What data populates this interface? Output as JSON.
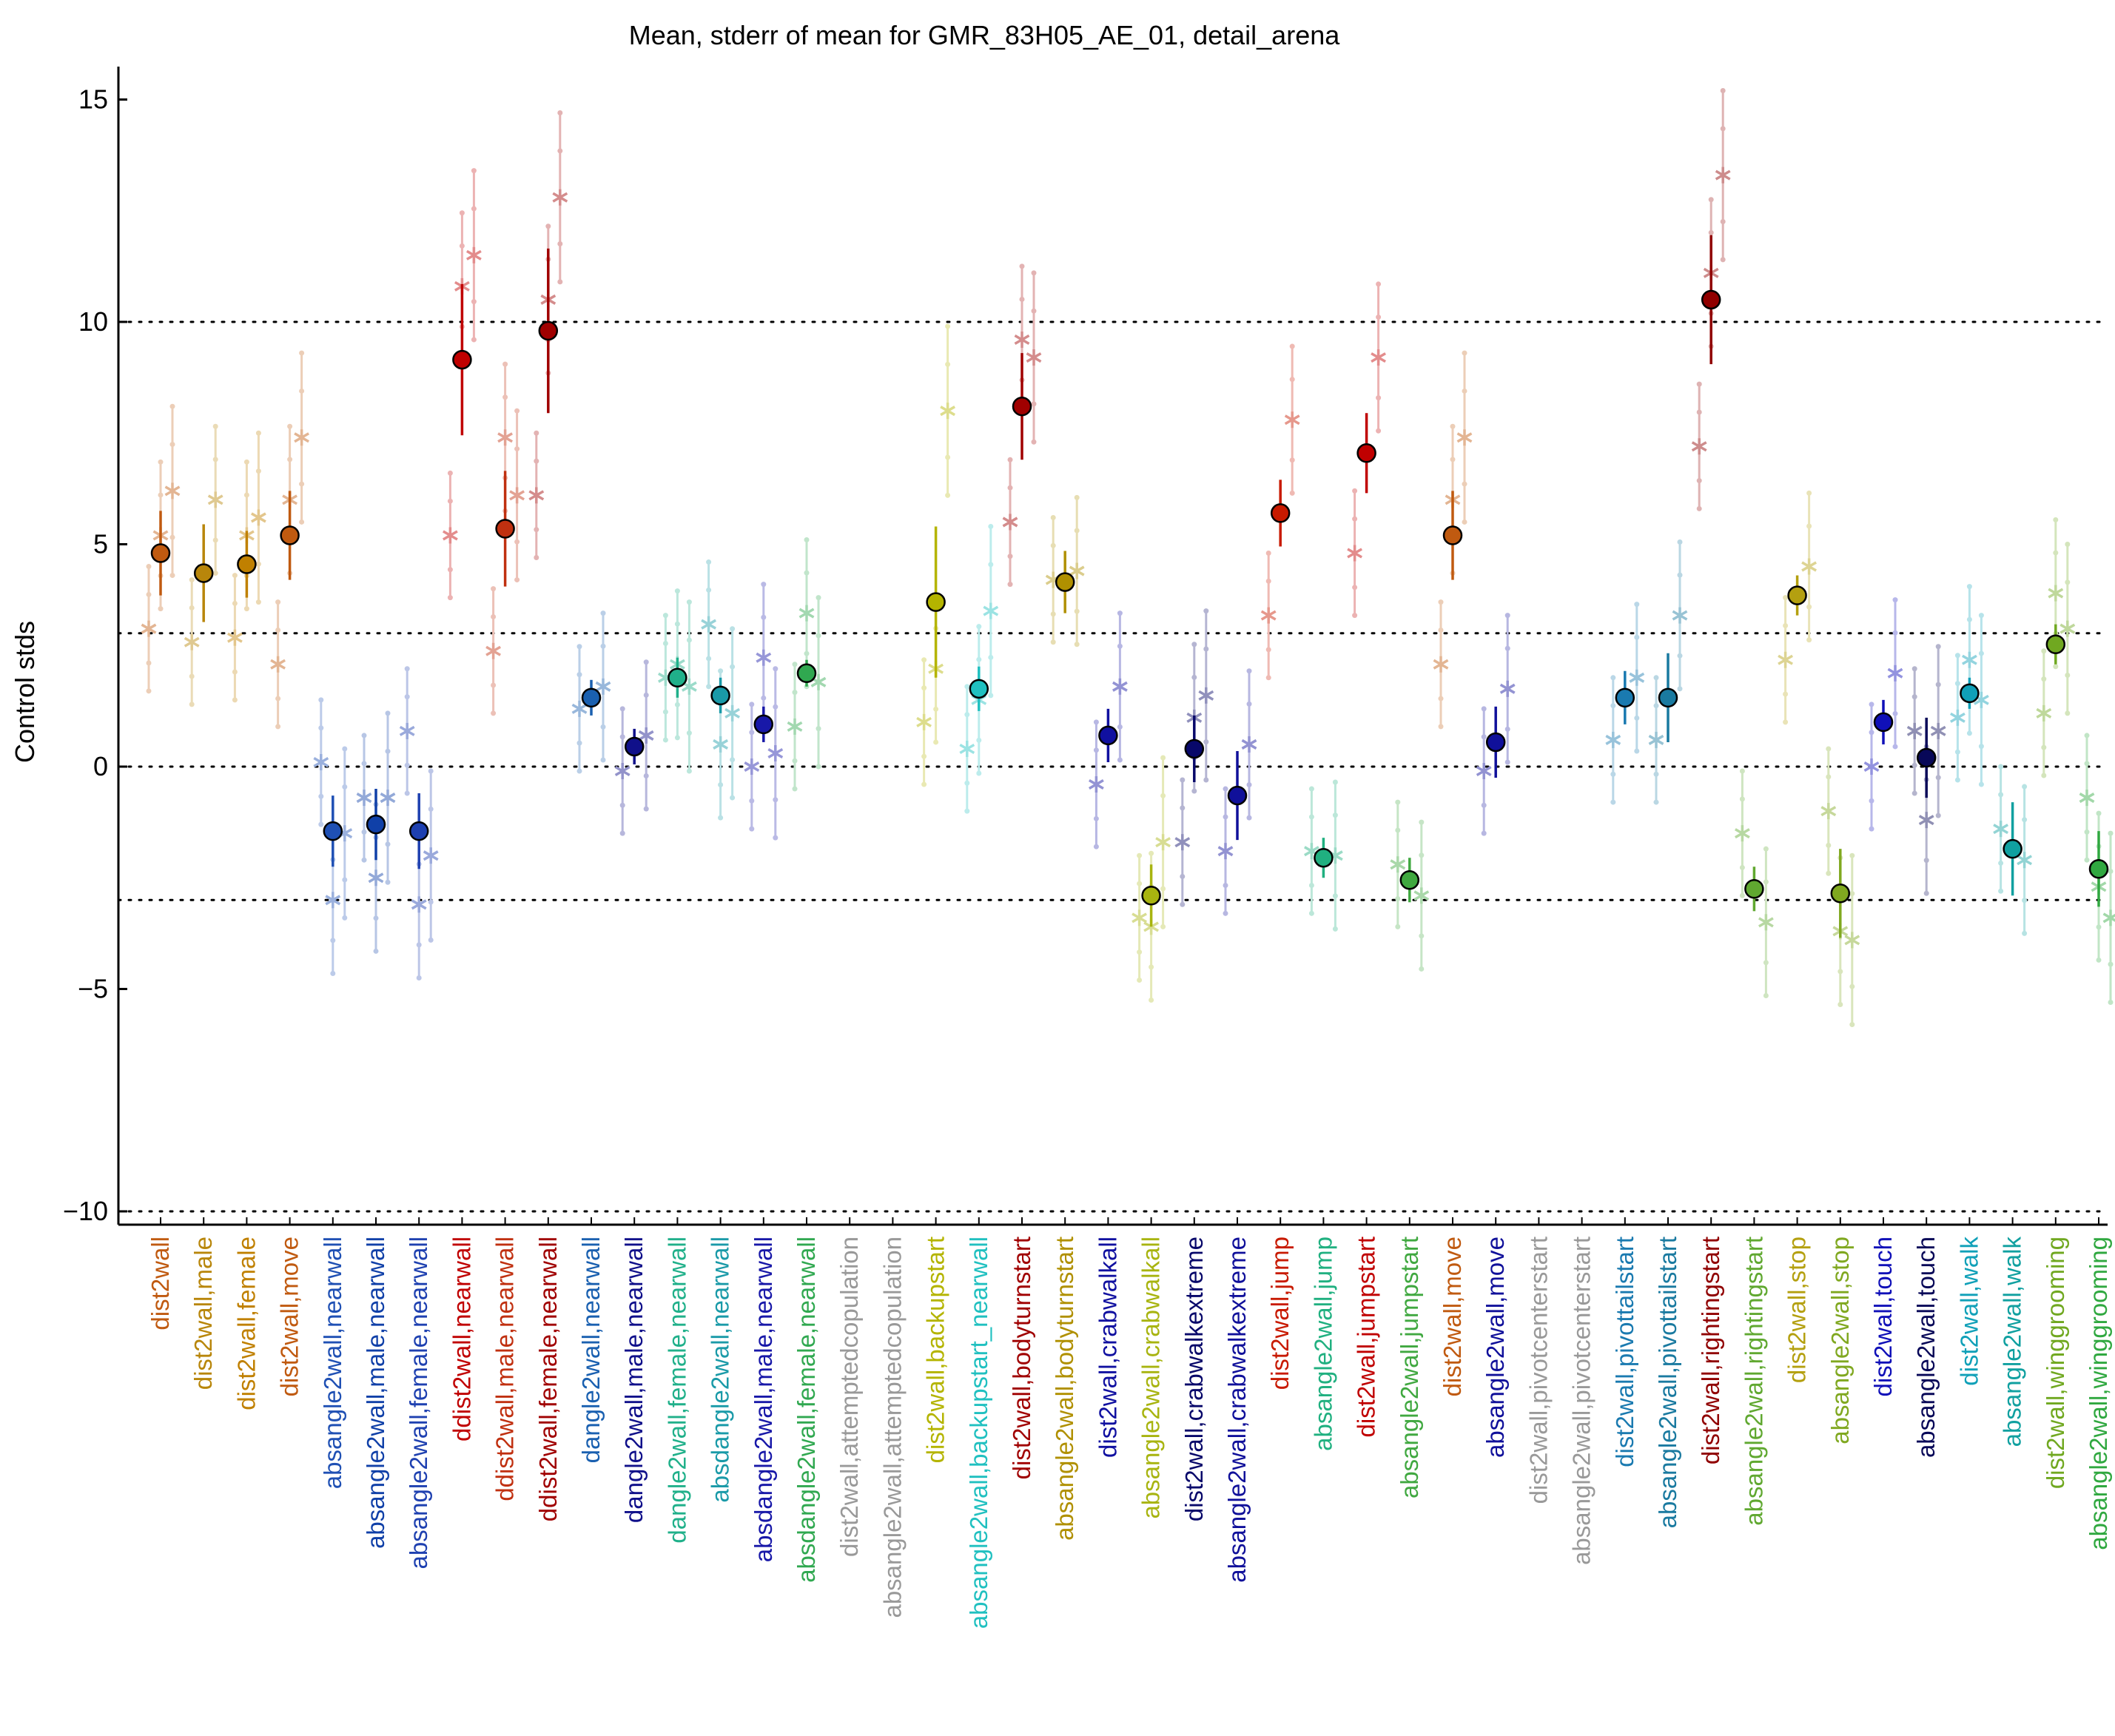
{
  "chart_data": {
    "type": "scatter",
    "title": "Mean, stderr of mean for GMR_83H05_AE_01, detail_arena",
    "xlabel": "",
    "ylabel": "Control stds",
    "ylim": [
      -10,
      15
    ],
    "yticks": [
      {
        "value": 15,
        "label": "15"
      },
      {
        "value": 10,
        "label": "10"
      },
      {
        "value": 5,
        "label": "5"
      },
      {
        "value": 0,
        "label": "0"
      },
      {
        "value": -5,
        "label": "−5"
      },
      {
        "value": -10,
        "label": "−10"
      }
    ],
    "reference_lines": [
      10,
      3,
      0,
      -3,
      -10
    ],
    "grid": false,
    "legend": "none",
    "categories": [
      {
        "label": "dist2wall",
        "color": "#c05a10",
        "mean": 4.8,
        "sem": 0.95,
        "subs": [
          3.1,
          5.2,
          6.2
        ]
      },
      {
        "label": "dist2wall,male",
        "color": "#b8860b",
        "mean": 4.35,
        "sem": 1.1,
        "subs": [
          2.8,
          6.0
        ]
      },
      {
        "label": "dist2wall,female",
        "color": "#c08000",
        "mean": 4.55,
        "sem": 0.75,
        "subs": [
          2.9,
          5.2,
          5.6
        ]
      },
      {
        "label": "dist2wall,move",
        "color": "#c05a10",
        "mean": 5.2,
        "sem": 1.0,
        "subs": [
          2.3,
          6.0,
          7.4
        ]
      },
      {
        "label": "absangle2wall,nearwall",
        "color": "#1f50b4",
        "mean": -1.45,
        "sem": 0.8,
        "subs": [
          0.1,
          -3.0,
          -1.5
        ]
      },
      {
        "label": "absangle2wall,male,nearwall",
        "color": "#1040a8",
        "mean": -1.3,
        "sem": 0.8,
        "subs": [
          -0.7,
          -2.5,
          -0.7
        ]
      },
      {
        "label": "absangle2wall,female,nearwall",
        "color": "#1e40b0",
        "mean": -1.45,
        "sem": 0.85,
        "subs": [
          0.8,
          -3.1,
          -2.0
        ]
      },
      {
        "label": "ddist2wall,nearwall",
        "color": "#c00000",
        "mean": 9.15,
        "sem": 1.7,
        "subs": [
          5.2,
          10.8,
          11.5
        ]
      },
      {
        "label": "ddist2wall,male,nearwall",
        "color": "#c03010",
        "mean": 5.35,
        "sem": 1.3,
        "subs": [
          2.6,
          7.4,
          6.1
        ]
      },
      {
        "label": "ddist2wall,female,nearwall",
        "color": "#a00000",
        "mean": 9.8,
        "sem": 1.85,
        "subs": [
          6.1,
          10.5,
          12.8
        ]
      },
      {
        "label": "dangle2wall,nearwall",
        "color": "#1a60b0",
        "mean": 1.55,
        "sem": 0.4,
        "subs": [
          1.3,
          1.8
        ]
      },
      {
        "label": "dangle2wall,male,nearwall",
        "color": "#10108a",
        "mean": 0.45,
        "sem": 0.4,
        "subs": [
          -0.1,
          0.7
        ]
      },
      {
        "label": "dangle2wall,female,nearwall",
        "color": "#20b08a",
        "mean": 2.0,
        "sem": 0.45,
        "subs": [
          2.0,
          2.3,
          1.8
        ]
      },
      {
        "label": "absdangle2wall,nearwall",
        "color": "#1a9aa8",
        "mean": 1.6,
        "sem": 0.4,
        "subs": [
          3.2,
          0.5,
          1.2
        ]
      },
      {
        "label": "absdangle2wall,male,nearwall",
        "color": "#1818a8",
        "mean": 0.95,
        "sem": 0.4,
        "subs": [
          0.0,
          2.45,
          0.3
        ]
      },
      {
        "label": "absdangle2wall,female,nearwall",
        "color": "#30a850",
        "mean": 2.1,
        "sem": 0.3,
        "subs": [
          0.9,
          3.45,
          1.9
        ]
      },
      {
        "label": "dist2wall,attemptedcopulation",
        "color": "#999999",
        "mean": null,
        "sem": null,
        "subs": []
      },
      {
        "label": "absangle2wall,attemptedcopulation",
        "color": "#999999",
        "mean": null,
        "sem": null,
        "subs": []
      },
      {
        "label": "dist2wall,backupstart",
        "color": "#b4b400",
        "mean": 3.7,
        "sem": 1.7,
        "subs": [
          1.0,
          2.2,
          8.0
        ]
      },
      {
        "label": "absangle2wall,backupstart_nearwall",
        "color": "#20c0c0",
        "mean": 1.75,
        "sem": 0.5,
        "subs": [
          0.4,
          1.5,
          3.5
        ]
      },
      {
        "label": "dist2wall,bodyturnstart",
        "color": "#a00000",
        "mean": 8.1,
        "sem": 1.2,
        "subs": [
          5.5,
          9.6,
          9.2
        ]
      },
      {
        "label": "absangle2wall,bodyturnstart",
        "color": "#b09000",
        "mean": 4.15,
        "sem": 0.7,
        "subs": [
          4.2,
          4.4
        ]
      },
      {
        "label": "dist2wall,crabwalkall",
        "color": "#1010a0",
        "mean": 0.7,
        "sem": 0.6,
        "subs": [
          -0.4,
          1.8
        ]
      },
      {
        "label": "absangle2wall,crabwalkall",
        "color": "#a8b410",
        "mean": -2.9,
        "sem": 0.7,
        "subs": [
          -3.4,
          -3.6,
          -1.7
        ]
      },
      {
        "label": "dist2wall,crabwalkextreme",
        "color": "#08086a",
        "mean": 0.4,
        "sem": 0.75,
        "subs": [
          -1.7,
          1.1,
          1.6
        ]
      },
      {
        "label": "absangle2wall,crabwalkextreme",
        "color": "#10109a",
        "mean": -0.65,
        "sem": 1.0,
        "subs": [
          -1.9,
          0.5
        ]
      },
      {
        "label": "dist2wall,jump",
        "color": "#c81a00",
        "mean": 5.7,
        "sem": 0.75,
        "subs": [
          3.4,
          7.8
        ]
      },
      {
        "label": "absangle2wall,jump",
        "color": "#20b080",
        "mean": -2.05,
        "sem": 0.45,
        "subs": [
          -1.9,
          -2.0
        ]
      },
      {
        "label": "dist2wall,jumpstart",
        "color": "#c00000",
        "mean": 7.05,
        "sem": 0.9,
        "subs": [
          4.8,
          9.2
        ]
      },
      {
        "label": "absangle2wall,jumpstart",
        "color": "#40a840",
        "mean": -2.55,
        "sem": 0.5,
        "subs": [
          -2.2,
          -2.9
        ]
      },
      {
        "label": "dist2wall,move",
        "color": "#c05a10",
        "mean": 5.2,
        "sem": 1.0,
        "subs": [
          2.3,
          6.0,
          7.4
        ]
      },
      {
        "label": "absangle2wall,move",
        "color": "#10109a",
        "mean": 0.55,
        "sem": 0.8,
        "subs": [
          -0.1,
          1.75
        ]
      },
      {
        "label": "dist2wall,pivotcenterstart",
        "color": "#999999",
        "mean": null,
        "sem": null,
        "subs": []
      },
      {
        "label": "absangle2wall,pivotcenterstart",
        "color": "#999999",
        "mean": null,
        "sem": null,
        "subs": []
      },
      {
        "label": "dist2wall,pivottailstart",
        "color": "#1a7ab0",
        "mean": 1.55,
        "sem": 0.6,
        "subs": [
          0.6,
          2.0
        ]
      },
      {
        "label": "absangle2wall,pivottailstart",
        "color": "#1a7aa0",
        "mean": 1.55,
        "sem": 1.0,
        "subs": [
          0.6,
          3.4
        ]
      },
      {
        "label": "dist2wall,rightingstart",
        "color": "#900000",
        "mean": 10.5,
        "sem": 1.45,
        "subs": [
          7.2,
          11.1,
          13.3
        ]
      },
      {
        "label": "absangle2wall,rightingstart",
        "color": "#60a830",
        "mean": -2.75,
        "sem": 0.5,
        "subs": [
          -1.5,
          -3.5
        ]
      },
      {
        "label": "dist2wall,stop",
        "color": "#b4a010",
        "mean": 3.85,
        "sem": 0.45,
        "subs": [
          2.4,
          4.5
        ]
      },
      {
        "label": "absangle2wall,stop",
        "color": "#80a820",
        "mean": -2.85,
        "sem": 1.0,
        "subs": [
          -1.0,
          -3.7,
          -3.9
        ]
      },
      {
        "label": "dist2wall,touch",
        "color": "#1010b8",
        "mean": 1.0,
        "sem": 0.5,
        "subs": [
          0.0,
          2.1
        ]
      },
      {
        "label": "absangle2wall,touch",
        "color": "#080858",
        "mean": 0.2,
        "sem": 0.9,
        "subs": [
          0.8,
          -1.2,
          0.8
        ]
      },
      {
        "label": "dist2wall,walk",
        "color": "#10a0b8",
        "mean": 1.65,
        "sem": 0.35,
        "subs": [
          1.1,
          2.4,
          1.5
        ]
      },
      {
        "label": "absangle2wall,walk",
        "color": "#10a0a0",
        "mean": -1.85,
        "sem": 1.05,
        "subs": [
          -1.4,
          -2.1
        ]
      },
      {
        "label": "dist2wall,winggrooming",
        "color": "#70a820",
        "mean": 2.75,
        "sem": 0.45,
        "subs": [
          1.2,
          3.9,
          3.1
        ]
      },
      {
        "label": "absangle2wall,winggrooming",
        "color": "#30a840",
        "mean": -2.3,
        "sem": 0.85,
        "subs": [
          -0.7,
          -2.7,
          -3.4
        ]
      }
    ]
  }
}
